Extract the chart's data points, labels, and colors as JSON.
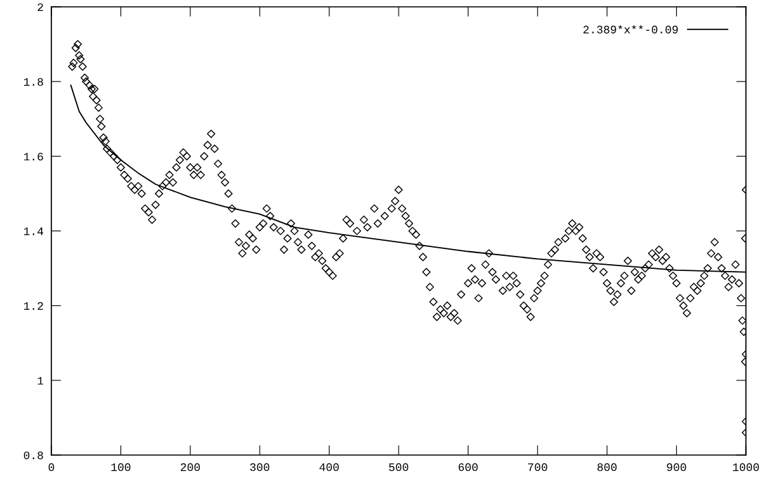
{
  "chart_data": {
    "type": "scatter",
    "xlim": [
      0,
      1000
    ],
    "ylim": [
      0.8,
      2
    ],
    "xticks": [
      0,
      100,
      200,
      300,
      400,
      500,
      600,
      700,
      800,
      900,
      1000
    ],
    "yticks": [
      0.8,
      1,
      1.2,
      1.4,
      1.6,
      1.8,
      2
    ],
    "grid": false,
    "legend": "top right",
    "series": [
      {
        "color": "#000000",
        "marker": "diamond",
        "x": [
          30,
          32,
          35,
          38,
          40,
          42,
          45,
          48,
          50,
          55,
          58,
          60,
          62,
          65,
          68,
          70,
          72,
          75,
          78,
          80,
          85,
          90,
          95,
          100,
          105,
          110,
          115,
          120,
          125,
          130,
          135,
          140,
          145,
          150,
          155,
          160,
          165,
          170,
          175,
          180,
          185,
          190,
          195,
          200,
          205,
          210,
          215,
          220,
          225,
          230,
          235,
          240,
          245,
          250,
          255,
          260,
          265,
          270,
          275,
          280,
          285,
          290,
          295,
          300,
          305,
          310,
          315,
          320,
          330,
          335,
          340,
          345,
          350,
          355,
          360,
          370,
          375,
          380,
          385,
          390,
          395,
          400,
          405,
          410,
          415,
          420,
          425,
          430,
          440,
          450,
          455,
          465,
          470,
          480,
          490,
          495,
          500,
          505,
          510,
          515,
          520,
          525,
          530,
          535,
          540,
          545,
          550,
          555,
          560,
          565,
          570,
          575,
          580,
          585,
          590,
          600,
          605,
          610,
          615,
          620,
          625,
          630,
          635,
          640,
          650,
          655,
          660,
          665,
          670,
          675,
          680,
          685,
          690,
          695,
          700,
          705,
          710,
          715,
          720,
          725,
          730,
          740,
          745,
          750,
          755,
          760,
          765,
          770,
          775,
          780,
          785,
          790,
          795,
          800,
          805,
          810,
          815,
          820,
          825,
          830,
          835,
          840,
          845,
          850,
          855,
          860,
          865,
          870,
          875,
          880,
          885,
          890,
          895,
          900,
          905,
          910,
          915,
          920,
          925,
          930,
          935,
          940,
          945,
          950,
          955,
          960,
          965,
          970,
          975,
          980,
          985,
          990,
          993,
          995,
          997,
          999,
          999,
          1000,
          1000,
          1000,
          1000
        ],
        "values": [
          1.84,
          1.85,
          1.89,
          1.9,
          1.87,
          1.86,
          1.84,
          1.81,
          1.8,
          1.79,
          1.78,
          1.76,
          1.78,
          1.75,
          1.73,
          1.7,
          1.68,
          1.65,
          1.64,
          1.62,
          1.61,
          1.6,
          1.59,
          1.57,
          1.55,
          1.54,
          1.52,
          1.51,
          1.52,
          1.5,
          1.46,
          1.45,
          1.43,
          1.47,
          1.5,
          1.52,
          1.53,
          1.55,
          1.53,
          1.57,
          1.59,
          1.61,
          1.6,
          1.57,
          1.55,
          1.57,
          1.55,
          1.6,
          1.63,
          1.66,
          1.62,
          1.58,
          1.55,
          1.53,
          1.5,
          1.46,
          1.42,
          1.37,
          1.34,
          1.36,
          1.39,
          1.38,
          1.35,
          1.41,
          1.42,
          1.46,
          1.44,
          1.41,
          1.4,
          1.35,
          1.38,
          1.42,
          1.4,
          1.37,
          1.35,
          1.39,
          1.36,
          1.33,
          1.34,
          1.32,
          1.3,
          1.29,
          1.28,
          1.33,
          1.34,
          1.38,
          1.43,
          1.42,
          1.4,
          1.43,
          1.41,
          1.46,
          1.42,
          1.44,
          1.46,
          1.48,
          1.51,
          1.46,
          1.44,
          1.42,
          1.4,
          1.39,
          1.36,
          1.33,
          1.29,
          1.25,
          1.21,
          1.17,
          1.19,
          1.18,
          1.2,
          1.17,
          1.18,
          1.16,
          1.23,
          1.26,
          1.3,
          1.27,
          1.22,
          1.26,
          1.31,
          1.34,
          1.29,
          1.27,
          1.24,
          1.28,
          1.25,
          1.28,
          1.26,
          1.23,
          1.2,
          1.19,
          1.17,
          1.22,
          1.24,
          1.26,
          1.28,
          1.31,
          1.34,
          1.35,
          1.37,
          1.38,
          1.4,
          1.42,
          1.4,
          1.41,
          1.38,
          1.35,
          1.33,
          1.3,
          1.34,
          1.33,
          1.29,
          1.26,
          1.24,
          1.21,
          1.23,
          1.26,
          1.28,
          1.32,
          1.24,
          1.29,
          1.27,
          1.28,
          1.3,
          1.31,
          1.34,
          1.33,
          1.35,
          1.32,
          1.33,
          1.3,
          1.28,
          1.26,
          1.22,
          1.2,
          1.18,
          1.22,
          1.25,
          1.24,
          1.26,
          1.28,
          1.3,
          1.34,
          1.37,
          1.33,
          1.3,
          1.28,
          1.25,
          1.27,
          1.31,
          1.26,
          1.22,
          1.16,
          1.13,
          1.38,
          1.05,
          1.51,
          1.07,
          0.89,
          0.86
        ]
      },
      {
        "type": "line",
        "name": "2.389*x**-0.09",
        "color": "#000000",
        "marker": "none",
        "line_style": "solid",
        "x": [
          28,
          40,
          50,
          75,
          100,
          125,
          150,
          200,
          250,
          300,
          350,
          400,
          500,
          600,
          700,
          800,
          900,
          1000
        ],
        "values": [
          1.79,
          1.72,
          1.69,
          1.63,
          1.59,
          1.555,
          1.525,
          1.49,
          1.465,
          1.445,
          1.41,
          1.395,
          1.37,
          1.345,
          1.325,
          1.31,
          1.295,
          1.29
        ]
      }
    ]
  }
}
